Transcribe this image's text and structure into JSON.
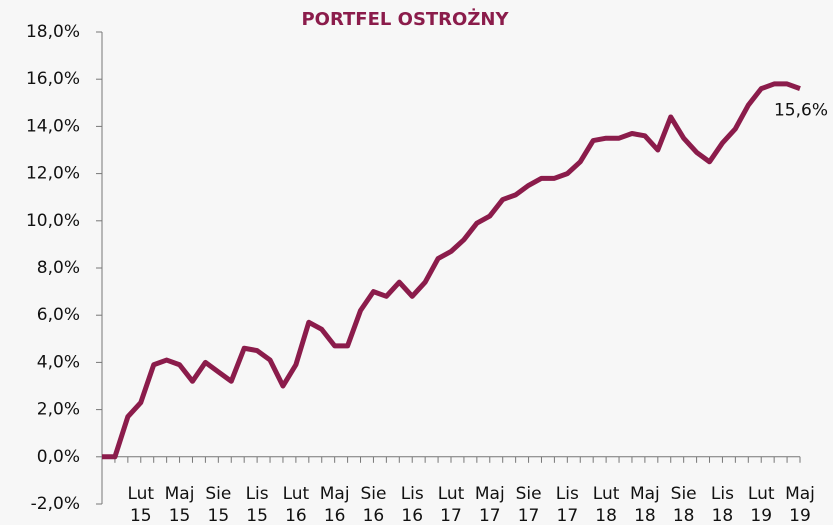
{
  "chart_data": {
    "type": "line",
    "title": "PORTFEL OSTROŻNY",
    "categories": [
      null,
      null,
      null,
      [
        "Lut",
        "15"
      ],
      null,
      null,
      [
        "Maj",
        "15"
      ],
      null,
      null,
      [
        "Sie",
        "15"
      ],
      null,
      null,
      [
        "Lis",
        "15"
      ],
      null,
      null,
      [
        "Lut",
        "16"
      ],
      null,
      null,
      [
        "Maj",
        "16"
      ],
      null,
      null,
      [
        "Sie",
        "16"
      ],
      null,
      null,
      [
        "Lis",
        "16"
      ],
      null,
      null,
      [
        "Lut",
        "17"
      ],
      null,
      null,
      [
        "Maj",
        "17"
      ],
      null,
      null,
      [
        "Sie",
        "17"
      ],
      null,
      null,
      [
        "Lis",
        "17"
      ],
      null,
      null,
      [
        "Lut",
        "18"
      ],
      null,
      null,
      [
        "Maj",
        "18"
      ],
      null,
      null,
      [
        "Sie",
        "18"
      ],
      null,
      null,
      [
        "Lis",
        "18"
      ],
      null,
      null,
      [
        "Lut",
        "19"
      ],
      null,
      null,
      [
        "Maj",
        "19"
      ]
    ],
    "series": [
      {
        "color": "#8b1c4b",
        "values": [
          0,
          0,
          1.7,
          2.3,
          3.9,
          4.1,
          3.9,
          3.2,
          4.0,
          3.6,
          3.2,
          4.6,
          4.5,
          4.1,
          3.0,
          3.9,
          5.7,
          5.4,
          4.7,
          4.7,
          6.2,
          7.0,
          6.8,
          7.4,
          6.8,
          7.4,
          8.4,
          8.7,
          9.2,
          9.9,
          10.2,
          10.9,
          11.1,
          11.5,
          11.8,
          11.8,
          12.0,
          12.5,
          13.4,
          13.5,
          13.5,
          13.7,
          13.6,
          13.0,
          14.4,
          13.5,
          12.9,
          12.5,
          13.3,
          13.9,
          14.9,
          15.6,
          15.8,
          15.8,
          15.6
        ],
        "value_labels": [
          null,
          null,
          null,
          null,
          null,
          null,
          null,
          null,
          null,
          null,
          null,
          null,
          null,
          null,
          null,
          null,
          null,
          null,
          null,
          null,
          null,
          null,
          null,
          null,
          null,
          null,
          null,
          null,
          null,
          null,
          null,
          null,
          null,
          null,
          null,
          null,
          null,
          null,
          null,
          null,
          null,
          null,
          null,
          null,
          null,
          null,
          null,
          null,
          null,
          null,
          null,
          null,
          null,
          null,
          "15,6%"
        ]
      }
    ],
    "ylim": [
      -2,
      18
    ],
    "yticks": [
      {
        "value": -2,
        "label": "-2,0%"
      },
      {
        "value": 0,
        "label": "0,0%"
      },
      {
        "value": 2,
        "label": "2,0%"
      },
      {
        "value": 4,
        "label": "4,0%"
      },
      {
        "value": 6,
        "label": "6,0%"
      },
      {
        "value": 8,
        "label": "8,0%"
      },
      {
        "value": 10,
        "label": "10,0%"
      },
      {
        "value": 12,
        "label": "12,0%"
      },
      {
        "value": 14,
        "label": "14,0%"
      },
      {
        "value": 16,
        "label": "16,0%"
      },
      {
        "value": 18,
        "label": "18,0%"
      }
    ]
  }
}
